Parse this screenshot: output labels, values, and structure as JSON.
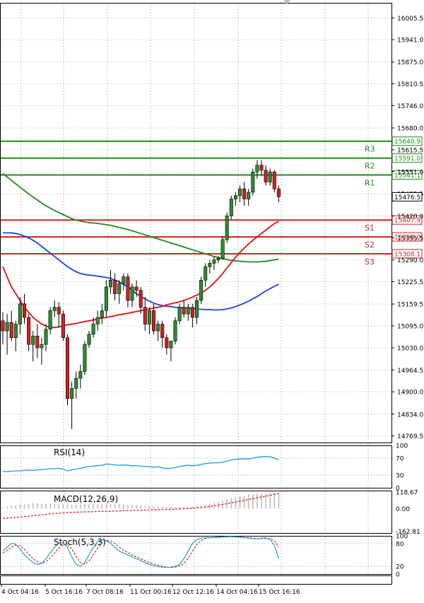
{
  "chart_data": [
    {
      "type": "candlestick",
      "panel": "price",
      "yticks": [
        16005.5,
        15941.0,
        15875.0,
        15810.5,
        15746.0,
        15680.0,
        15615.5,
        15551.0,
        15485.5,
        15420.0,
        15355.5,
        15290.0,
        15225.5,
        15159.5,
        15095.0,
        15030.0,
        14964.5,
        14900.0,
        14834.0,
        14769.5
      ],
      "ylim": [
        14750,
        16050
      ],
      "xticks": [
        "4 Oct 04:16",
        "5 Oct 16:16",
        "7 Oct 08:16",
        "11 Oct 00:16",
        "12 Oct 12:16",
        "14 Oct 04:16",
        "15 Oct 16:16"
      ],
      "levels": [
        {
          "name": "R3",
          "value": 15640.9,
          "label": "15640.9",
          "color": "#1f8a1f"
        },
        {
          "name": "R2",
          "value": 15591.0,
          "label": "15591.0",
          "color": "#1f8a1f"
        },
        {
          "name": "R1",
          "value": 15541.1,
          "label": "15541.1",
          "color": "#1f8a1f"
        },
        {
          "name": "S1",
          "value": 15407.9,
          "label": "15407.9",
          "color": "#d92020"
        },
        {
          "name": "S2",
          "value": 15358.0,
          "label": "15358.0",
          "color": "#d92020"
        },
        {
          "name": "S3",
          "value": 15308.1,
          "label": "15308.1",
          "color": "#d92020"
        }
      ],
      "last_price": "15476.5",
      "candles": [
        [
          15110,
          15135,
          15040,
          15080
        ],
        [
          15080,
          15130,
          15010,
          15105
        ],
        [
          15105,
          15140,
          15050,
          15060
        ],
        [
          15060,
          15110,
          15020,
          15100
        ],
        [
          15100,
          15180,
          15070,
          15160
        ],
        [
          15160,
          15190,
          15100,
          15120
        ],
        [
          15120,
          15130,
          15020,
          15040
        ],
        [
          15040,
          15080,
          14990,
          15065
        ],
        [
          15065,
          15100,
          15000,
          15030
        ],
        [
          15030,
          15060,
          14980,
          15040
        ],
        [
          15040,
          15100,
          15020,
          15085
        ],
        [
          15085,
          15150,
          15070,
          15140
        ],
        [
          15140,
          15170,
          15120,
          15150
        ],
        [
          15150,
          15165,
          15090,
          15130
        ],
        [
          15130,
          15140,
          15050,
          15060
        ],
        [
          15060,
          15070,
          14860,
          14880
        ],
        [
          14880,
          14930,
          14790,
          14910
        ],
        [
          14910,
          14960,
          14880,
          14940
        ],
        [
          14940,
          14980,
          14910,
          14960
        ],
        [
          14960,
          15050,
          14950,
          15040
        ],
        [
          15040,
          15080,
          15030,
          15070
        ],
        [
          15070,
          15120,
          15060,
          15100
        ],
        [
          15100,
          15140,
          15080,
          15120
        ],
        [
          15120,
          15160,
          15100,
          15140
        ],
        [
          15140,
          15230,
          15120,
          15210
        ],
        [
          15210,
          15260,
          15190,
          15230
        ],
        [
          15230,
          15250,
          15170,
          15190
        ],
        [
          15190,
          15230,
          15160,
          15220
        ],
        [
          15220,
          15250,
          15200,
          15240
        ],
        [
          15240,
          15250,
          15150,
          15170
        ],
        [
          15170,
          15220,
          15150,
          15210
        ],
        [
          15210,
          15230,
          15180,
          15200
        ],
        [
          15200,
          15210,
          15130,
          15150
        ],
        [
          15150,
          15180,
          15080,
          15100
        ],
        [
          15100,
          15150,
          15070,
          15140
        ],
        [
          15140,
          15160,
          15070,
          15080
        ],
        [
          15080,
          15110,
          15050,
          15100
        ],
        [
          15100,
          15110,
          15030,
          15060
        ],
        [
          15060,
          15070,
          15010,
          15030
        ],
        [
          15030,
          15040,
          14990,
          15050
        ],
        [
          15050,
          15120,
          15040,
          15110
        ],
        [
          15110,
          15160,
          15100,
          15150
        ],
        [
          15150,
          15170,
          15120,
          15130
        ],
        [
          15130,
          15160,
          15110,
          15150
        ],
        [
          15150,
          15160,
          15090,
          15120
        ],
        [
          15120,
          15180,
          15100,
          15170
        ],
        [
          15170,
          15240,
          15160,
          15230
        ],
        [
          15230,
          15280,
          15210,
          15270
        ],
        [
          15270,
          15290,
          15250,
          15280
        ],
        [
          15280,
          15300,
          15260,
          15290
        ],
        [
          15290,
          15300,
          15280,
          15295
        ],
        [
          15295,
          15360,
          15290,
          15350
        ],
        [
          15350,
          15430,
          15340,
          15420
        ],
        [
          15420,
          15480,
          15410,
          15470
        ],
        [
          15470,
          15490,
          15450,
          15480
        ],
        [
          15480,
          15510,
          15460,
          15500
        ],
        [
          15500,
          15520,
          15450,
          15470
        ],
        [
          15470,
          15500,
          15450,
          15490
        ],
        [
          15490,
          15560,
          15480,
          15550
        ],
        [
          15550,
          15585,
          15530,
          15570
        ],
        [
          15570,
          15585,
          15540,
          15555
        ],
        [
          15555,
          15570,
          15510,
          15520
        ],
        [
          15520,
          15560,
          15510,
          15550
        ],
        [
          15550,
          15555,
          15490,
          15500
        ],
        [
          15500,
          15510,
          15460,
          15476.5
        ]
      ],
      "ma_red": [
        15270,
        15240,
        15210,
        15190,
        15170,
        15150,
        15135,
        15120,
        15110,
        15100,
        15095,
        15090,
        15090,
        15092,
        15095,
        15098,
        15100,
        15102,
        15105,
        15108,
        15110,
        15112,
        15115,
        15118,
        15120,
        15122,
        15125,
        15128,
        15130,
        15132,
        15135,
        15137,
        15140,
        15143,
        15145,
        15148,
        15150,
        15153,
        15157,
        15160,
        15163,
        15166,
        15170,
        15175,
        15180,
        15186,
        15192,
        15200,
        15210,
        15222,
        15235,
        15250,
        15266,
        15282,
        15298,
        15312,
        15325,
        15337,
        15348,
        15358,
        15368,
        15378,
        15388,
        15397,
        15404
      ],
      "ma_blue": [
        15370,
        15370,
        15370,
        15368,
        15365,
        15360,
        15355,
        15348,
        15340,
        15330,
        15320,
        15310,
        15300,
        15290,
        15280,
        15270,
        15262,
        15255,
        15250,
        15247,
        15245,
        15244,
        15242,
        15240,
        15238,
        15235,
        15230,
        15225,
        15218,
        15210,
        15200,
        15190,
        15182,
        15175,
        15168,
        15162,
        15158,
        15155,
        15153,
        15152,
        15150,
        15149,
        15148,
        15147,
        15146,
        15145,
        15144,
        15143,
        15143,
        15142,
        15142,
        15143,
        15145,
        15148,
        15152,
        15157,
        15162,
        15168,
        15175,
        15182,
        15190,
        15198,
        15205,
        15212,
        15218
      ],
      "ma_green": [
        15545,
        15535,
        15525,
        15515,
        15505,
        15495,
        15485,
        15476,
        15467,
        15458,
        15450,
        15443,
        15436,
        15430,
        15424,
        15418,
        15412,
        15408,
        15405,
        15402,
        15400,
        15399,
        15398,
        15396,
        15394,
        15392,
        15389,
        15386,
        15383,
        15380,
        15376,
        15372,
        15368,
        15364,
        15360,
        15356,
        15352,
        15348,
        15344,
        15340,
        15336,
        15332,
        15328,
        15324,
        15320,
        15316,
        15312,
        15308,
        15304,
        15300,
        15297,
        15294,
        15291,
        15289,
        15287,
        15286,
        15285,
        15284,
        15284,
        15284,
        15285,
        15286,
        15288,
        15290,
        15292
      ]
    },
    {
      "type": "line",
      "panel": "rsi",
      "title": "RSI(14)",
      "yticks": [
        100,
        70,
        30,
        0
      ],
      "ylim": [
        0,
        100
      ],
      "values": [
        38,
        38,
        39,
        40,
        40,
        41,
        42,
        41,
        42,
        43,
        44,
        45,
        45,
        46,
        44,
        40,
        42,
        44,
        46,
        48,
        50,
        51,
        52,
        53,
        56,
        55,
        54,
        53,
        54,
        53,
        52,
        52,
        51,
        50,
        50,
        48,
        50,
        47,
        46,
        46,
        48,
        50,
        52,
        53,
        52,
        53,
        55,
        57,
        58,
        59,
        59,
        60,
        63,
        66,
        67,
        68,
        68,
        68,
        70,
        72,
        73,
        74,
        73,
        70,
        66
      ]
    },
    {
      "type": "bar",
      "panel": "macd",
      "title": "MACD(12,26,9)",
      "yticks": [
        118.67,
        0.0,
        -162.81
      ],
      "ylim": [
        -175,
        130
      ],
      "values": [
        10,
        15,
        20,
        25,
        30,
        32,
        35,
        40,
        38,
        36,
        35,
        36,
        35,
        34,
        33,
        32,
        30,
        30,
        30,
        32,
        32,
        33,
        33,
        34,
        35,
        35,
        34,
        33,
        32,
        30,
        28,
        26,
        24,
        22,
        20,
        18,
        16,
        15,
        14,
        13,
        12,
        12,
        12,
        13,
        15,
        18,
        22,
        28,
        35,
        42,
        50,
        58,
        66,
        74,
        82,
        88,
        94,
        100,
        105,
        108,
        110,
        112,
        114,
        116,
        118
      ],
      "signal": [
        -70,
        -68,
        -66,
        -63,
        -60,
        -57,
        -54,
        -50,
        -47,
        -44,
        -41,
        -38,
        -35,
        -32,
        -30,
        -28,
        -26,
        -25,
        -24,
        -23,
        -22,
        -21,
        -20,
        -19,
        -18,
        -18,
        -17,
        -16,
        -15,
        -14,
        -13,
        -12,
        -11,
        -10,
        -9,
        -8,
        -7,
        -6,
        -5,
        -4,
        -3,
        -2,
        0,
        2,
        4,
        6,
        9,
        12,
        16,
        20,
        25,
        30,
        36,
        42,
        48,
        54,
        60,
        66,
        72,
        78,
        84,
        90,
        96,
        102,
        108
      ]
    },
    {
      "type": "line",
      "panel": "stochastic",
      "title": "Stoch(5,3,3)",
      "yticks": [
        100,
        80,
        20,
        0
      ],
      "ylim": [
        0,
        100
      ],
      "k": [
        60,
        70,
        80,
        78,
        65,
        50,
        40,
        30,
        25,
        28,
        40,
        55,
        70,
        80,
        82,
        70,
        45,
        25,
        20,
        30,
        50,
        70,
        85,
        90,
        88,
        80,
        70,
        60,
        55,
        50,
        45,
        40,
        35,
        30,
        25,
        22,
        20,
        18,
        17,
        18,
        20,
        25,
        40,
        60,
        80,
        90,
        94,
        95,
        95,
        96,
        97,
        97,
        98,
        98,
        97,
        96,
        95,
        94,
        93,
        92,
        94,
        95,
        90,
        75,
        40
      ],
      "d": [
        55,
        62,
        70,
        76,
        74,
        65,
        52,
        40,
        32,
        28,
        32,
        42,
        55,
        68,
        77,
        77,
        66,
        46,
        30,
        26,
        34,
        50,
        68,
        82,
        88,
        86,
        80,
        70,
        62,
        56,
        50,
        45,
        40,
        35,
        30,
        26,
        23,
        20,
        18,
        17,
        18,
        21,
        28,
        42,
        60,
        77,
        88,
        93,
        95,
        95,
        96,
        97,
        97,
        98,
        98,
        97,
        96,
        95,
        94,
        93,
        93,
        93,
        93,
        87,
        70
      ]
    }
  ]
}
